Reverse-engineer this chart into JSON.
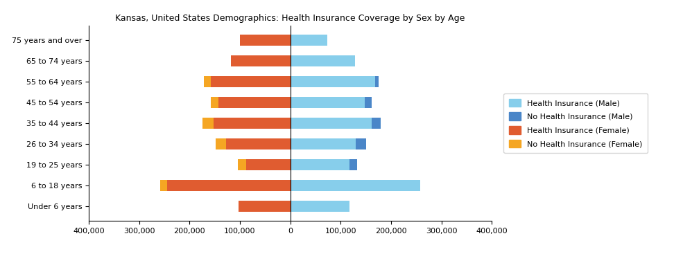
{
  "title": "Kansas, United States Demographics: Health Insurance Coverage by Sex by Age",
  "age_groups": [
    "Under 6 years",
    "6 to 18 years",
    "19 to 25 years",
    "26 to 34 years",
    "35 to 44 years",
    "45 to 54 years",
    "55 to 64 years",
    "65 to 74 years",
    "75 years and over"
  ],
  "health_ins_male": [
    118000,
    258000,
    118000,
    130000,
    162000,
    148000,
    168000,
    128000,
    73000
  ],
  "no_health_ins_male": [
    0,
    0,
    14000,
    20000,
    18000,
    13000,
    7000,
    0,
    0
  ],
  "health_ins_female": [
    103000,
    245000,
    88000,
    128000,
    152000,
    142000,
    158000,
    118000,
    100000
  ],
  "no_health_ins_female": [
    0,
    13000,
    16000,
    20000,
    22000,
    16000,
    14000,
    0,
    0
  ],
  "colors": {
    "health_ins_male": "#87CEEB",
    "no_health_ins_male": "#4A86C8",
    "health_ins_female": "#E05C30",
    "no_health_ins_female": "#F5A623"
  },
  "xlim": [
    -400000,
    400000
  ],
  "xticks": [
    -400000,
    -300000,
    -200000,
    -100000,
    0,
    100000,
    200000,
    300000,
    400000
  ],
  "xtick_labels": [
    "400,000",
    "300,000",
    "200,000",
    "100,000",
    "0",
    "100,000",
    "200,000",
    "300,000",
    "400,000"
  ],
  "legend_labels": [
    "Health Insurance (Male)",
    "No Health Insurance (Male)",
    "Health Insurance (Female)",
    "No Health Insurance (Female)"
  ],
  "legend_colors": [
    "#87CEEB",
    "#4A86C8",
    "#E05C30",
    "#F5A623"
  ]
}
